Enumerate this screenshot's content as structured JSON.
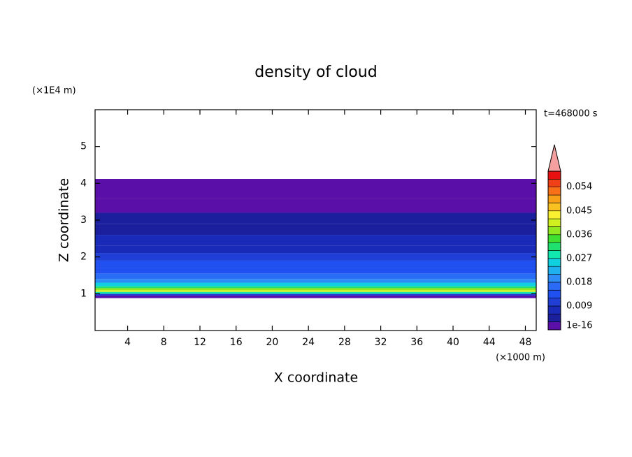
{
  "chart_data": {
    "type": "contour",
    "title": "density of cloud",
    "time_label": "t=468000 s",
    "x_label": "X coordinate",
    "y_label": "Z coordinate",
    "x_unit": "(×1000 m)",
    "y_unit": "(×1E4 m)",
    "xlim": [
      0.4,
      49.2
    ],
    "ylim": [
      0,
      6
    ],
    "xticks": [
      4,
      8,
      12,
      16,
      20,
      24,
      28,
      32,
      36,
      40,
      44,
      48
    ],
    "yticks": [
      1,
      2,
      3,
      4,
      5
    ],
    "z_bins": [
      0.88,
      0.95,
      1.0,
      1.05,
      1.1,
      1.15,
      1.2,
      1.3,
      1.4,
      1.55,
      1.7,
      1.9,
      2.1,
      2.3,
      2.6,
      2.9,
      3.2,
      3.6,
      4.12
    ],
    "density": [
      0.002,
      0.01,
      0.028,
      0.04,
      0.036,
      0.03,
      0.024,
      0.02,
      0.017,
      0.014,
      0.012,
      0.009,
      0.007,
      0.006,
      0.004,
      0.003,
      0.002,
      0.001
    ],
    "colorbar_lim": [
      0,
      0.06
    ],
    "colorbar_ticks": [
      1e-16,
      0.009,
      0.018,
      0.027,
      0.036,
      0.045,
      0.054
    ],
    "colors": [
      "#5a0fa8",
      "#1b1f9e",
      "#1a2ab8",
      "#1f3fd6",
      "#2050f0",
      "#2a6cf5",
      "#2d8cf5",
      "#20b0f0",
      "#10d0e0",
      "#10e8b0",
      "#20e070",
      "#40e030",
      "#90e820",
      "#d0f020",
      "#f8f030",
      "#f8c020",
      "#f8a018",
      "#f87018",
      "#f04018",
      "#e81010"
    ],
    "overflow_color": "#f4a0a0"
  }
}
